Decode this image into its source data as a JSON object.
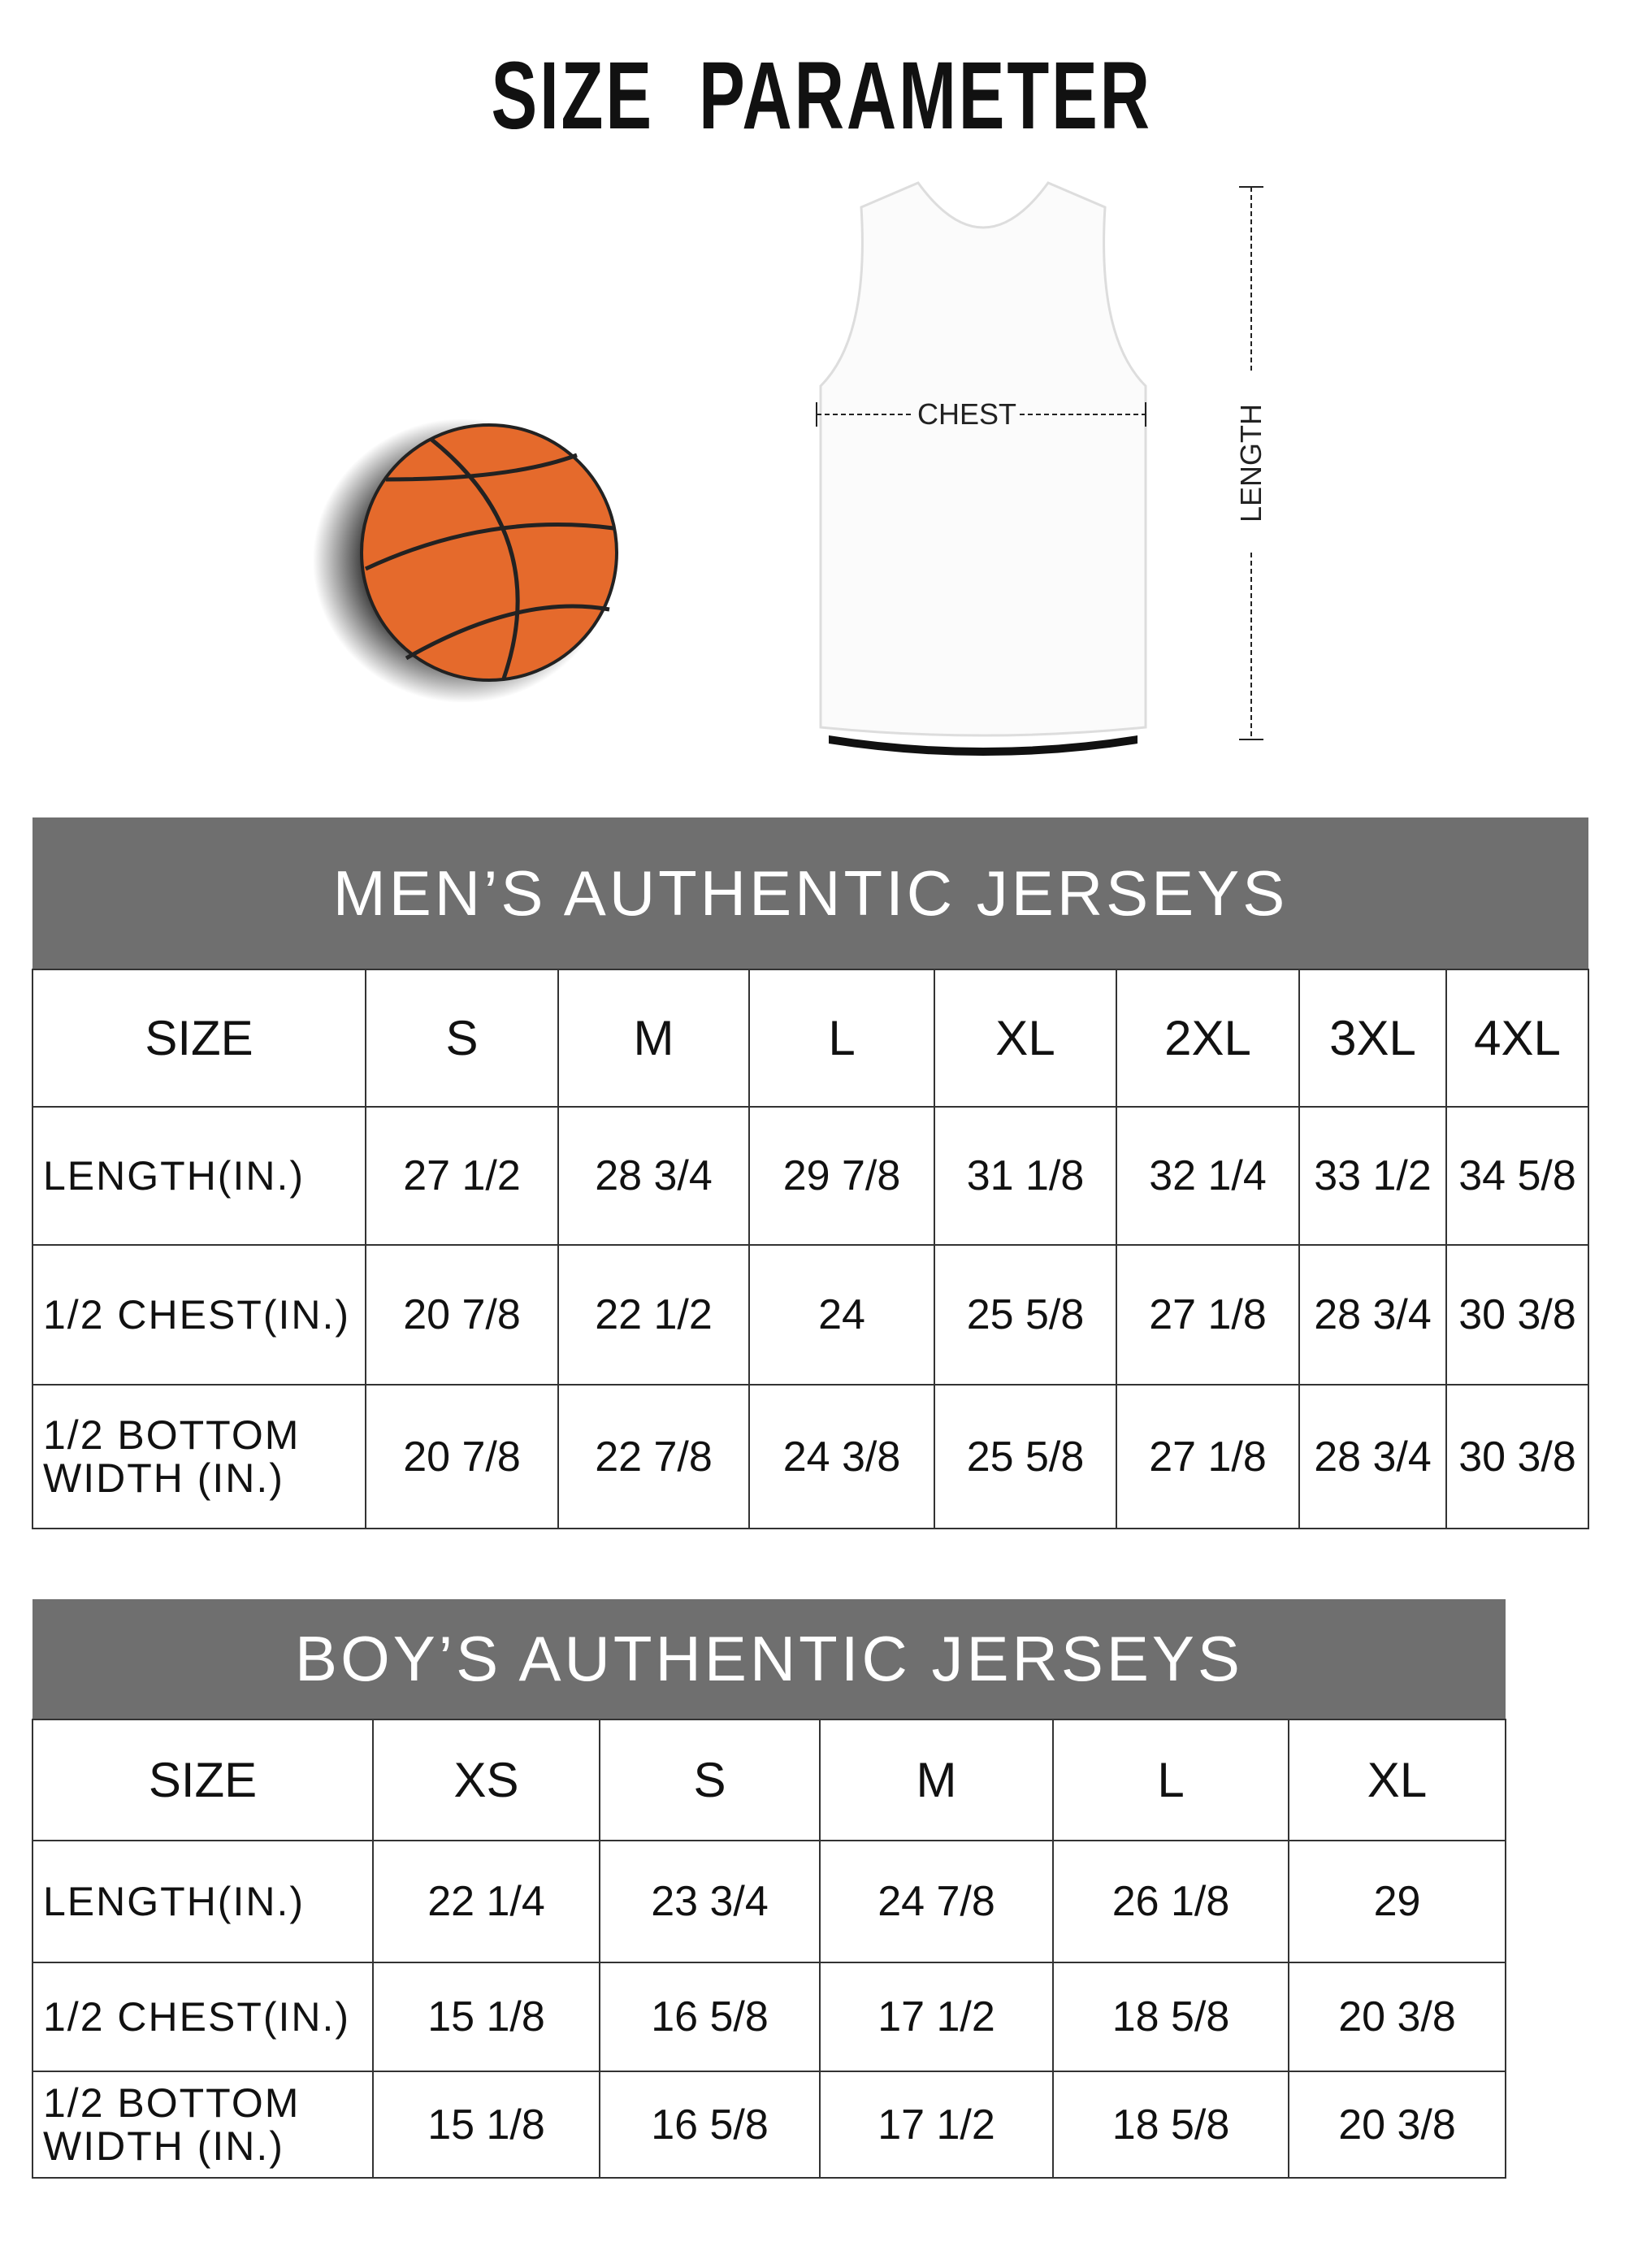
{
  "title": "SIZE PARAMETER",
  "diagram": {
    "chest_label": "CHEST",
    "length_label": "LENGTH"
  },
  "colors": {
    "header_bg": "#6f6f6f",
    "ball": "#e56a2c"
  },
  "mens": {
    "heading": "MEN’S AUTHENTIC JERSEYS",
    "size_label": "SIZE",
    "sizes": [
      "S",
      "M",
      "L",
      "XL",
      "2XL",
      "3XL",
      "4XL"
    ],
    "rows": [
      {
        "label": "LENGTH(IN.)",
        "values": [
          "27 1/2",
          "28 3/4",
          "29 7/8",
          "31 1/8",
          "32 1/4",
          "33 1/2",
          "34 5/8"
        ]
      },
      {
        "label": "1/2 CHEST(IN.)",
        "values": [
          "20 7/8",
          "22 1/2",
          "24",
          "25 5/8",
          "27 1/8",
          "28 3/4",
          "30 3/8"
        ]
      },
      {
        "label": "1/2 BOTTOM WIDTH (IN.)",
        "values": [
          "20 7/8",
          "22 7/8",
          "24 3/8",
          "25 5/8",
          "27 1/8",
          "28 3/4",
          "30 3/8"
        ]
      }
    ]
  },
  "boys": {
    "heading": "BOY’S AUTHENTIC JERSEYS",
    "size_label": "SIZE",
    "sizes": [
      "XS",
      "S",
      "M",
      "L",
      "XL"
    ],
    "rows": [
      {
        "label": "LENGTH(IN.)",
        "values": [
          "22 1/4",
          "23 3/4",
          "24 7/8",
          "26 1/8",
          "29"
        ]
      },
      {
        "label": "1/2 CHEST(IN.)",
        "values": [
          "15 1/8",
          "16 5/8",
          "17 1/2",
          "18 5/8",
          "20 3/8"
        ]
      },
      {
        "label": "1/2 BOTTOM WIDTH (IN.)",
        "values": [
          "15 1/8",
          "16 5/8",
          "17 1/2",
          "18 5/8",
          "20 3/8"
        ]
      }
    ]
  }
}
